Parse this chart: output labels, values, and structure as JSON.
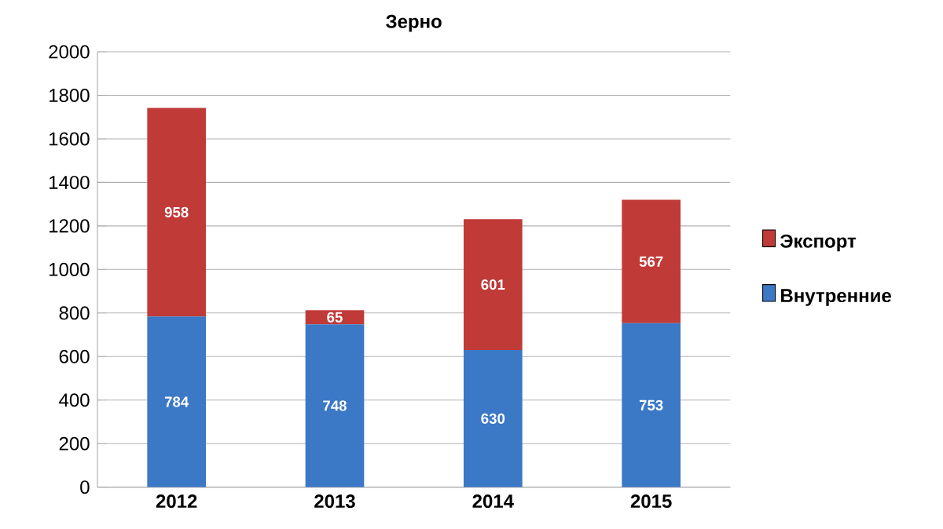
{
  "chart_data": {
    "type": "bar",
    "title": "Зерно",
    "stacked": true,
    "categories": [
      "2012",
      "2013",
      "2014",
      "2015"
    ],
    "series": [
      {
        "name": "Внутренние",
        "color": "#3b78c6",
        "values": [
          784,
          748,
          630,
          753
        ]
      },
      {
        "name": "Экспорт",
        "color": "#c03a38",
        "values": [
          958,
          65,
          601,
          567
        ]
      }
    ],
    "ylim": [
      0,
      2000
    ],
    "yticks": [
      0,
      200,
      400,
      600,
      800,
      1000,
      1200,
      1400,
      1600,
      1800,
      2000
    ],
    "grid": "y",
    "legend": "right",
    "data_labels": true
  }
}
